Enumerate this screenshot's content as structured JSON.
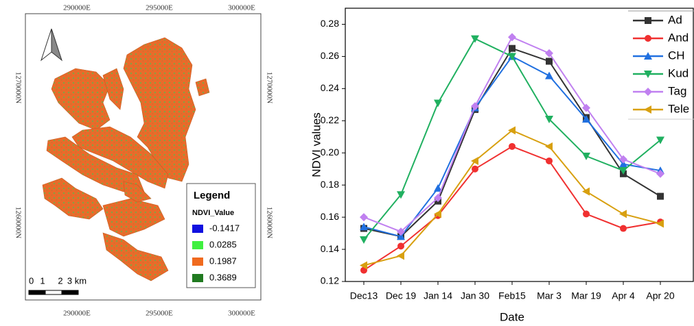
{
  "map": {
    "top_labels": [
      "290000E",
      "295000E",
      "300000E"
    ],
    "bottom_labels": [
      "290000E",
      "295000E",
      "300000E"
    ],
    "left_labels": [
      "1270000N",
      "1260000N"
    ],
    "right_labels": [
      "1270000N",
      "1260000N"
    ],
    "legend": {
      "title": "Legend",
      "field": "NDVI_Value",
      "items": [
        {
          "label": -0.1417,
          "color": "#1010e0"
        },
        {
          "label": 0.0285,
          "color": "#40f040"
        },
        {
          "label": 0.1987,
          "color": "#f06a1e"
        },
        {
          "label": 0.3689,
          "color": "#207a20"
        }
      ]
    },
    "scale": [
      "0",
      "1",
      "2",
      "3 km"
    ]
  },
  "chart_data": {
    "type": "line",
    "xlabel": "Date",
    "ylabel": "NDVI values",
    "categories": [
      "Dec13",
      "Dec 19",
      "Jan 14",
      "Jan 30",
      "Feb15",
      "Mar 3",
      "Mar 19",
      "Apr 4",
      "Apr 20"
    ],
    "ylim": [
      0.12,
      0.29
    ],
    "yticks": [
      0.12,
      0.14,
      0.16,
      0.18,
      {
        "value": 0.2,
        "label": "0.20"
      },
      0.22,
      0.24,
      0.26,
      0.28
    ],
    "series": [
      {
        "name": "Ad",
        "color": "#333333",
        "marker": "square",
        "values": [
          0.153,
          0.148,
          0.17,
          0.227,
          0.265,
          0.257,
          0.222,
          0.187,
          0.173
        ]
      },
      {
        "name": "And",
        "color": "#f03030",
        "marker": "circle",
        "values": [
          0.127,
          0.142,
          0.161,
          0.19,
          0.204,
          0.195,
          0.162,
          0.153,
          0.157
        ]
      },
      {
        "name": "CH",
        "color": "#2070e0",
        "marker": "triangle-up",
        "values": [
          0.154,
          0.148,
          0.178,
          0.228,
          0.26,
          0.248,
          0.221,
          0.193,
          0.189
        ]
      },
      {
        "name": "Kud",
        "color": "#20b060",
        "marker": "triangle-down",
        "values": [
          0.146,
          0.174,
          0.231,
          0.271,
          0.26,
          0.221,
          0.198,
          0.189,
          0.208
        ]
      },
      {
        "name": "Tag",
        "color": "#c080f0",
        "marker": "diamond",
        "values": [
          0.16,
          0.151,
          0.172,
          0.229,
          0.272,
          0.262,
          0.228,
          0.196,
          0.187
        ]
      },
      {
        "name": "Tele",
        "color": "#d8a010",
        "marker": "triangle-left",
        "values": [
          0.13,
          0.136,
          0.162,
          0.195,
          0.214,
          0.204,
          0.176,
          0.162,
          0.156
        ]
      }
    ]
  }
}
